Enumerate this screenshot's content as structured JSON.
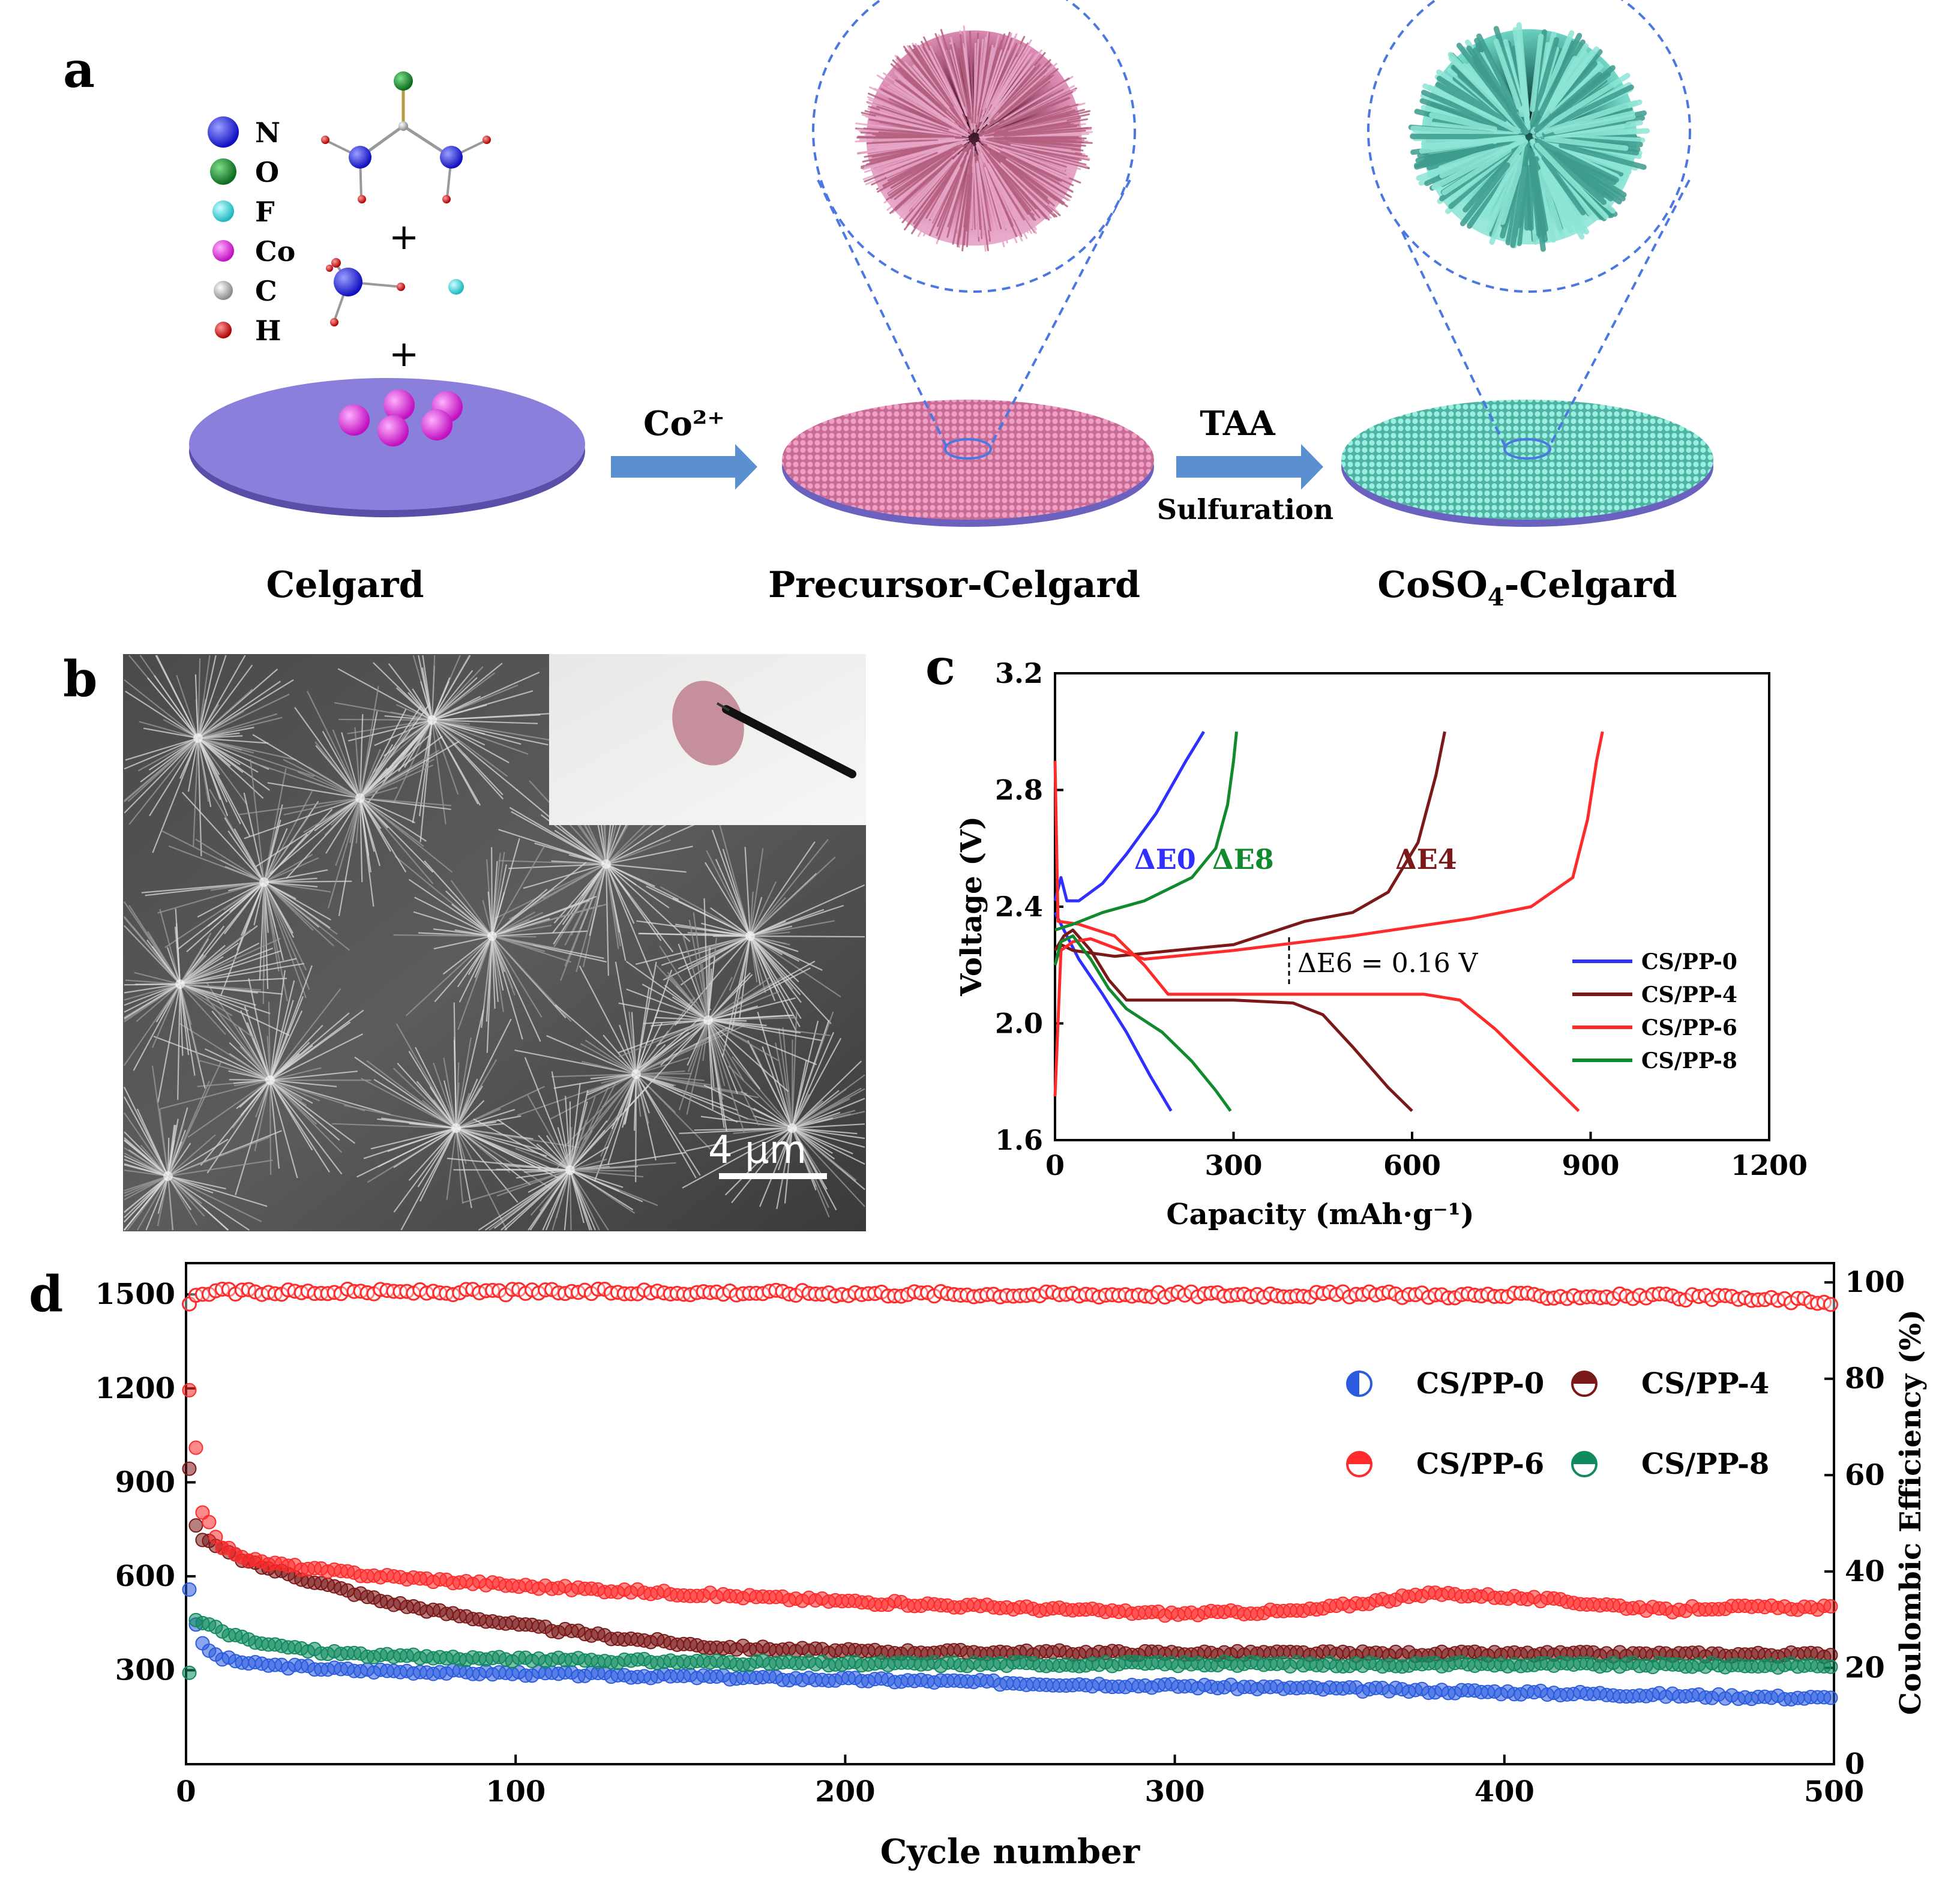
{
  "panel_labels": {
    "a": "a",
    "b": "b",
    "c": "c",
    "d": "d"
  },
  "panel_a": {
    "legend": [
      {
        "symbol": "N",
        "color": "#2222d6"
      },
      {
        "symbol": "O",
        "color": "#1f8a2e"
      },
      {
        "symbol": "F",
        "color": "#2fd6d6"
      },
      {
        "symbol": "Co",
        "color": "#e01ee0"
      },
      {
        "symbol": "C",
        "color": "#b8b8b8"
      },
      {
        "symbol": "H",
        "color": "#d61a1a"
      }
    ],
    "plus_1": "+",
    "plus_2": "+",
    "arrow_1_label": "Co²⁺",
    "arrow_2_label": "TAA",
    "arrow_2_sublabel": "Sulfuration",
    "stage_labels": {
      "celgard": "Celgard",
      "precursor": "Precursor-Celgard",
      "coso4_prefix": "CoSO",
      "coso4_sub": "4",
      "coso4_suffix": "-Celgard"
    },
    "colors": {
      "celgard": "#7a6fd0",
      "precursor": "#d97aa5",
      "coso4": "#6fd6c4",
      "arrow": "#5a8fd0"
    }
  },
  "panel_b": {
    "scale_bar_label": "4 µm"
  },
  "panel_c": {
    "chart_data": {
      "type": "line",
      "xlabel": "Capacity (mAh·g⁻¹)",
      "ylabel": "Voltage (V)",
      "xlim": [
        0,
        1200
      ],
      "ylim": [
        1.6,
        3.2
      ],
      "xticks": [
        0,
        300,
        600,
        900,
        1200
      ],
      "yticks": [
        1.6,
        2.0,
        2.4,
        2.8,
        3.2
      ],
      "annotations": [
        "ΔE0",
        "ΔE8",
        "ΔE4",
        "ΔE6 = 0.16 V"
      ],
      "series": [
        {
          "name": "CS/PP-0",
          "color": "#2f2fff",
          "discharge": [
            [
              0,
              2.38
            ],
            [
              20,
              2.3
            ],
            [
              40,
              2.22
            ],
            [
              80,
              2.1
            ],
            [
              120,
              1.97
            ],
            [
              160,
              1.82
            ],
            [
              195,
              1.7
            ]
          ],
          "charge": [
            [
              0,
              2.42
            ],
            [
              10,
              2.5
            ],
            [
              20,
              2.42
            ],
            [
              40,
              2.42
            ],
            [
              80,
              2.48
            ],
            [
              120,
              2.58
            ],
            [
              170,
              2.72
            ],
            [
              220,
              2.9
            ],
            [
              250,
              3.0
            ]
          ]
        },
        {
          "name": "CS/PP-4",
          "color": "#7b1818",
          "discharge": [
            [
              0,
              2.25
            ],
            [
              15,
              2.3
            ],
            [
              30,
              2.32
            ],
            [
              60,
              2.25
            ],
            [
              90,
              2.15
            ],
            [
              120,
              2.08
            ],
            [
              300,
              2.08
            ],
            [
              400,
              2.07
            ],
            [
              450,
              2.03
            ],
            [
              500,
              1.92
            ],
            [
              560,
              1.78
            ],
            [
              600,
              1.7
            ]
          ],
          "charge": [
            [
              0,
              2.2
            ],
            [
              10,
              2.27
            ],
            [
              30,
              2.25
            ],
            [
              100,
              2.23
            ],
            [
              300,
              2.27
            ],
            [
              420,
              2.35
            ],
            [
              500,
              2.38
            ],
            [
              560,
              2.45
            ],
            [
              610,
              2.62
            ],
            [
              640,
              2.85
            ],
            [
              655,
              3.0
            ]
          ]
        },
        {
          "name": "CS/PP-6",
          "color": "#ff2a2a",
          "discharge": [
            [
              0,
              2.9
            ],
            [
              5,
              2.35
            ],
            [
              40,
              2.34
            ],
            [
              100,
              2.3
            ],
            [
              150,
              2.2
            ],
            [
              190,
              2.1
            ],
            [
              500,
              2.1
            ],
            [
              620,
              2.1
            ],
            [
              680,
              2.08
            ],
            [
              740,
              1.98
            ],
            [
              820,
              1.82
            ],
            [
              880,
              1.7
            ]
          ],
          "charge": [
            [
              0,
              1.75
            ],
            [
              10,
              2.25
            ],
            [
              30,
              2.28
            ],
            [
              60,
              2.29
            ],
            [
              150,
              2.22
            ],
            [
              300,
              2.25
            ],
            [
              500,
              2.3
            ],
            [
              700,
              2.36
            ],
            [
              800,
              2.4
            ],
            [
              870,
              2.5
            ],
            [
              895,
              2.7
            ],
            [
              910,
              2.9
            ],
            [
              920,
              3.0
            ]
          ]
        },
        {
          "name": "CS/PP-8",
          "color": "#118a2e",
          "discharge": [
            [
              0,
              2.2
            ],
            [
              10,
              2.28
            ],
            [
              30,
              2.3
            ],
            [
              60,
              2.22
            ],
            [
              90,
              2.12
            ],
            [
              120,
              2.05
            ],
            [
              180,
              1.97
            ],
            [
              230,
              1.87
            ],
            [
              270,
              1.77
            ],
            [
              295,
              1.7
            ]
          ],
          "charge": [
            [
              0,
              2.32
            ],
            [
              30,
              2.34
            ],
            [
              80,
              2.38
            ],
            [
              150,
              2.42
            ],
            [
              230,
              2.5
            ],
            [
              270,
              2.6
            ],
            [
              290,
              2.75
            ],
            [
              300,
              2.9
            ],
            [
              305,
              3.0
            ]
          ]
        }
      ]
    }
  },
  "panel_d": {
    "chart_data": {
      "type": "scatter",
      "xlabel": "Cycle number",
      "ylabel_right": "Coulombic Efficiency (%)",
      "xlim": [
        0,
        500
      ],
      "ylim": [
        0,
        1600
      ],
      "ylim_right": [
        0,
        104
      ],
      "xticks": [
        0,
        100,
        200,
        300,
        400,
        500
      ],
      "yticks": [
        300,
        600,
        900,
        1200,
        1500
      ],
      "yticks_right": [
        0,
        20,
        40,
        60,
        80,
        100
      ],
      "legend_position": "upper-right",
      "series": [
        {
          "name": "CS/PP-0",
          "color": "#2b5bde",
          "capacity": [
            [
              1,
              560
            ],
            [
              3,
              450
            ],
            [
              5,
              380
            ],
            [
              10,
              340
            ],
            [
              20,
              320
            ],
            [
              50,
              300
            ],
            [
              100,
              290
            ],
            [
              200,
              270
            ],
            [
              300,
              250
            ],
            [
              400,
              230
            ],
            [
              500,
              210
            ]
          ]
        },
        {
          "name": "CS/PP-4",
          "color": "#7b1818",
          "capacity": [
            [
              1,
              950
            ],
            [
              3,
              760
            ],
            [
              5,
              720
            ],
            [
              10,
              690
            ],
            [
              20,
              640
            ],
            [
              40,
              580
            ],
            [
              60,
              520
            ],
            [
              80,
              480
            ],
            [
              100,
              445
            ],
            [
              130,
              405
            ],
            [
              160,
              375
            ],
            [
              200,
              360
            ],
            [
              300,
              355
            ],
            [
              400,
              352
            ],
            [
              500,
              350
            ]
          ]
        },
        {
          "name": "CS/PP-6",
          "color": "#ff2a2a",
          "capacity": [
            [
              1,
              1200
            ],
            [
              3,
              1010
            ],
            [
              5,
              810
            ],
            [
              10,
              700
            ],
            [
              20,
              650
            ],
            [
              40,
              620
            ],
            [
              60,
              600
            ],
            [
              100,
              570
            ],
            [
              150,
              545
            ],
            [
              200,
              520
            ],
            [
              250,
              500
            ],
            [
              300,
              480
            ],
            [
              340,
              490
            ],
            [
              360,
              520
            ],
            [
              380,
              545
            ],
            [
              400,
              535
            ],
            [
              430,
              510
            ],
            [
              450,
              490
            ],
            [
              460,
              500
            ],
            [
              500,
              500
            ]
          ],
          "ce": [
            [
              1,
              95
            ],
            [
              3,
              97
            ],
            [
              5,
              98
            ],
            [
              50,
              98
            ],
            [
              150,
              98
            ],
            [
              250,
              97.5
            ],
            [
              350,
              97.5
            ],
            [
              450,
              97
            ],
            [
              500,
              96
            ]
          ]
        },
        {
          "name": "CS/PP-8",
          "color": "#118a5e",
          "capacity": [
            [
              1,
              290
            ],
            [
              3,
              460
            ],
            [
              5,
              450
            ],
            [
              10,
              430
            ],
            [
              20,
              390
            ],
            [
              40,
              360
            ],
            [
              60,
              345
            ],
            [
              100,
              335
            ],
            [
              200,
              320
            ],
            [
              300,
              320
            ],
            [
              400,
              318
            ],
            [
              500,
              315
            ]
          ]
        }
      ]
    }
  }
}
